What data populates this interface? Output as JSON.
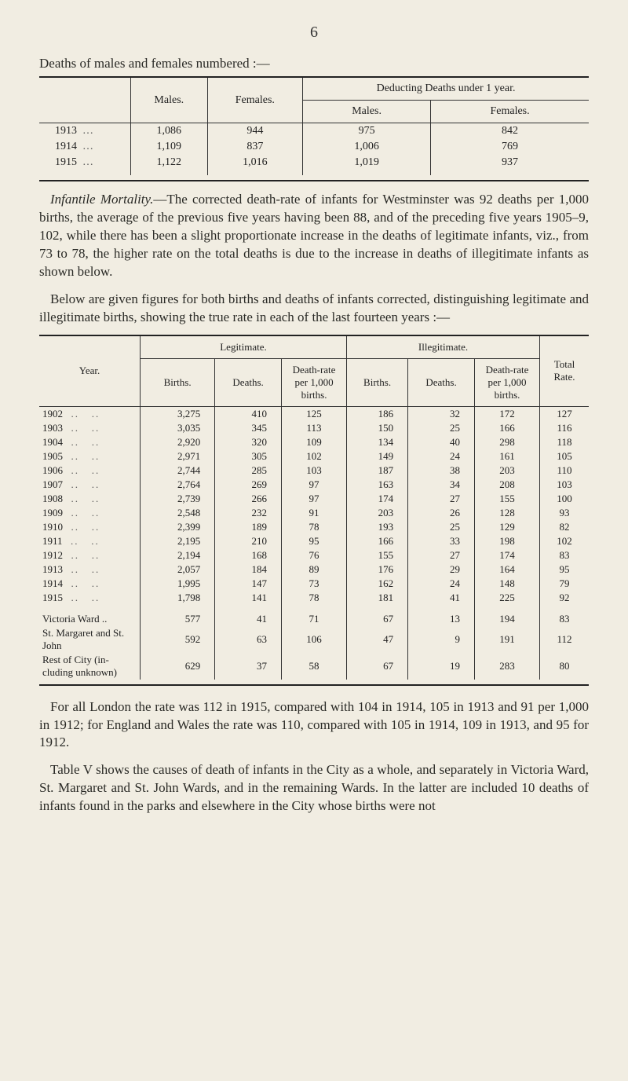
{
  "page_number": "6",
  "t1_caption": "Deaths of males and females numbered :—",
  "t1_headers": {
    "males": "Males.",
    "females": "Females.",
    "deduct": "Deducting Deaths under 1 year.",
    "d_males": "Males.",
    "d_females": "Females."
  },
  "t1_rows": [
    {
      "year": "1913",
      "males": "1,086",
      "females": "944",
      "d_m": "975",
      "d_f": "842"
    },
    {
      "year": "1914",
      "males": "1,109",
      "females": "837",
      "d_m": "1,006",
      "d_f": "769"
    },
    {
      "year": "1915",
      "males": "1,122",
      "females": "1,016",
      "d_m": "1,019",
      "d_f": "937"
    }
  ],
  "para1_leadin": "Infantile Mortality.",
  "para1_body": "—The corrected death-rate of infants for West­minster was 92 deaths per 1,000 births, the average of the previous five years having been 88, and of the preceding five years 1905–9, 102, while there has been a slight proportionate increase in the deaths of legitimate infants, viz., from 73 to 78, the higher rate on the total deaths is due to the increase in deaths of illegitimate infants as shown below.",
  "para2_body": "Below are given figures for both births and deaths of infants corrected, distinguishing legitimate and illegitimate births, showing the true rate in each of the last fourteen years :—",
  "t2_headers": {
    "year": "Year.",
    "legit": "Legitimate.",
    "illegit": "Illegitimate.",
    "total_rate": "Total Rate.",
    "births": "Births.",
    "deaths": "Deaths.",
    "dr": "Death-rate per 1,000 births."
  },
  "t2_rows": [
    {
      "y": "1902",
      "lb": "3,275",
      "ld": "410",
      "lr": "125",
      "ib": "186",
      "id": "32",
      "ir": "172",
      "tr": "127"
    },
    {
      "y": "1903",
      "lb": "3,035",
      "ld": "345",
      "lr": "113",
      "ib": "150",
      "id": "25",
      "ir": "166",
      "tr": "116"
    },
    {
      "y": "1904",
      "lb": "2,920",
      "ld": "320",
      "lr": "109",
      "ib": "134",
      "id": "40",
      "ir": "298",
      "tr": "118"
    },
    {
      "y": "1905",
      "lb": "2,971",
      "ld": "305",
      "lr": "102",
      "ib": "149",
      "id": "24",
      "ir": "161",
      "tr": "105"
    },
    {
      "y": "1906",
      "lb": "2,744",
      "ld": "285",
      "lr": "103",
      "ib": "187",
      "id": "38",
      "ir": "203",
      "tr": "110"
    },
    {
      "y": "1907",
      "lb": "2,764",
      "ld": "269",
      "lr": "97",
      "ib": "163",
      "id": "34",
      "ir": "208",
      "tr": "103"
    },
    {
      "y": "1908",
      "lb": "2,739",
      "ld": "266",
      "lr": "97",
      "ib": "174",
      "id": "27",
      "ir": "155",
      "tr": "100"
    },
    {
      "y": "1909",
      "lb": "2,548",
      "ld": "232",
      "lr": "91",
      "ib": "203",
      "id": "26",
      "ir": "128",
      "tr": "93"
    },
    {
      "y": "1910",
      "lb": "2,399",
      "ld": "189",
      "lr": "78",
      "ib": "193",
      "id": "25",
      "ir": "129",
      "tr": "82"
    },
    {
      "y": "1911",
      "lb": "2,195",
      "ld": "210",
      "lr": "95",
      "ib": "166",
      "id": "33",
      "ir": "198",
      "tr": "102"
    },
    {
      "y": "1912",
      "lb": "2,194",
      "ld": "168",
      "lr": "76",
      "ib": "155",
      "id": "27",
      "ir": "174",
      "tr": "83"
    },
    {
      "y": "1913",
      "lb": "2,057",
      "ld": "184",
      "lr": "89",
      "ib": "176",
      "id": "29",
      "ir": "164",
      "tr": "95"
    },
    {
      "y": "1914",
      "lb": "1,995",
      "ld": "147",
      "lr": "73",
      "ib": "162",
      "id": "24",
      "ir": "148",
      "tr": "79"
    },
    {
      "y": "1915",
      "lb": "1,798",
      "ld": "141",
      "lr": "78",
      "ib": "181",
      "id": "41",
      "ir": "225",
      "tr": "92"
    }
  ],
  "t2_extras": [
    {
      "y": "Victoria Ward ..",
      "lb": "577",
      "ld": "41",
      "lr": "71",
      "ib": "67",
      "id": "13",
      "ir": "194",
      "tr": "83"
    },
    {
      "y": "St. Margaret and St. John",
      "lb": "592",
      "ld": "63",
      "lr": "106",
      "ib": "47",
      "id": "9",
      "ir": "191",
      "tr": "112"
    },
    {
      "y": "Rest of City (in­cluding un­known)",
      "lb": "629",
      "ld": "37",
      "lr": "58",
      "ib": "67",
      "id": "19",
      "ir": "283",
      "tr": "80"
    }
  ],
  "para3_body": "For all London the rate was 112 in 1915, compared with 104 in 1914, 105 in 1913 and 91 per 1,000 in 1912; for England and Wales the rate was 110, compared with 105 in 1914, 109 in 1913, and 95 for 1912.",
  "para4_body": "Table V shows the causes of death of infants in the City as a whole, and separately in Victoria Ward, St. Margaret and St. John Wards, and in the remaining Wards. In the latter are included 10 deaths of infants found in the parks and elsewhere in the City whose births were not"
}
